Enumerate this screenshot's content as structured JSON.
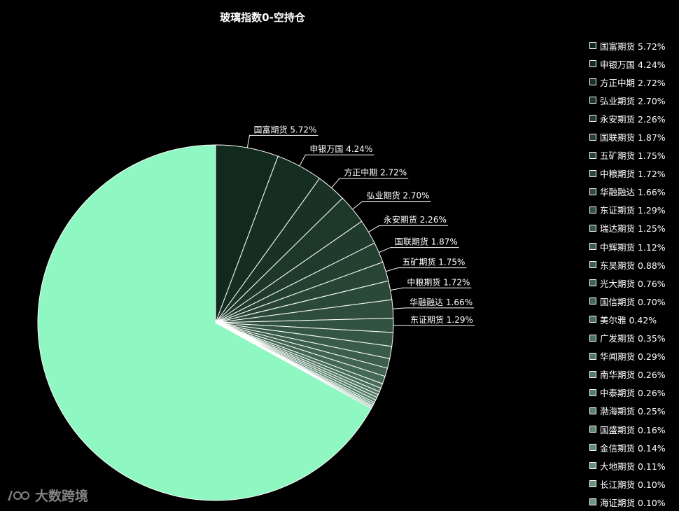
{
  "title": "玻璃指数0-空持仓",
  "watermark": {
    "text": "大数跨境",
    "logo_icon": "big-data-cross-border-logo-icon"
  },
  "colors": {
    "background": "#000000",
    "main_slice": "#8ff7c1",
    "dark_base": "#12291d",
    "dark_end": "#6a9a80",
    "stroke": "#ffffff"
  },
  "chart_data": {
    "type": "pie",
    "title": "玻璃指数0-空持仓",
    "legend_position": "right",
    "slices": [
      {
        "name": "国富期货",
        "value": 5.72,
        "label": "国富期货 5.72%"
      },
      {
        "name": "申银万国",
        "value": 4.24,
        "label": "申银万国 4.24%"
      },
      {
        "name": "方正中期",
        "value": 2.72,
        "label": "方正中期 2.72%"
      },
      {
        "name": "弘业期货",
        "value": 2.7,
        "label": "弘业期货 2.70%"
      },
      {
        "name": "永安期货",
        "value": 2.26,
        "label": "永安期货 2.26%"
      },
      {
        "name": "国联期货",
        "value": 1.87,
        "label": "国联期货 1.87%"
      },
      {
        "name": "五矿期货",
        "value": 1.75,
        "label": "五矿期货 1.75%"
      },
      {
        "name": "中粮期货",
        "value": 1.72,
        "label": "中粮期货 1.72%"
      },
      {
        "name": "华融融达",
        "value": 1.66,
        "label": "华融融达 1.66%"
      },
      {
        "name": "东证期货",
        "value": 1.29,
        "label": "东证期货 1.29%"
      },
      {
        "name": "瑞达期货",
        "value": 1.25,
        "label": "瑞达期货 1.25%"
      },
      {
        "name": "中辉期货",
        "value": 1.12,
        "label": "中辉期货 1.12%"
      },
      {
        "name": "东吴期货",
        "value": 0.88,
        "label": "东吴期货 0.88%"
      },
      {
        "name": "光大期货",
        "value": 0.76,
        "label": "光大期货 0.76%"
      },
      {
        "name": "国信期货",
        "value": 0.7,
        "label": "国信期货 0.70%"
      },
      {
        "name": "美尔雅",
        "value": 0.42,
        "label": "美尔雅 0.42%"
      },
      {
        "name": "广发期货",
        "value": 0.35,
        "label": "广发期货 0.35%"
      },
      {
        "name": "华闻期货",
        "value": 0.29,
        "label": "华闻期货 0.29%"
      },
      {
        "name": "南华期货",
        "value": 0.26,
        "label": "南华期货 0.26%"
      },
      {
        "name": "中泰期货",
        "value": 0.26,
        "label": "中泰期货 0.26%"
      },
      {
        "name": "渤海期货",
        "value": 0.25,
        "label": "渤海期货 0.25%"
      },
      {
        "name": "国盛期货",
        "value": 0.16,
        "label": "国盛期货 0.16%"
      },
      {
        "name": "金信期货",
        "value": 0.14,
        "label": "金信期货 0.14%"
      },
      {
        "name": "大地期货",
        "value": 0.11,
        "label": "大地期货 0.11%"
      },
      {
        "name": "长江期货",
        "value": 0.1,
        "label": "长江期货 0.10%"
      },
      {
        "name": "海证期货",
        "value": 0.1,
        "label": "海证期货 0.10%"
      },
      {
        "name": "",
        "value": 67.12,
        "label": ""
      }
    ],
    "labeled_slice_count": 10
  }
}
